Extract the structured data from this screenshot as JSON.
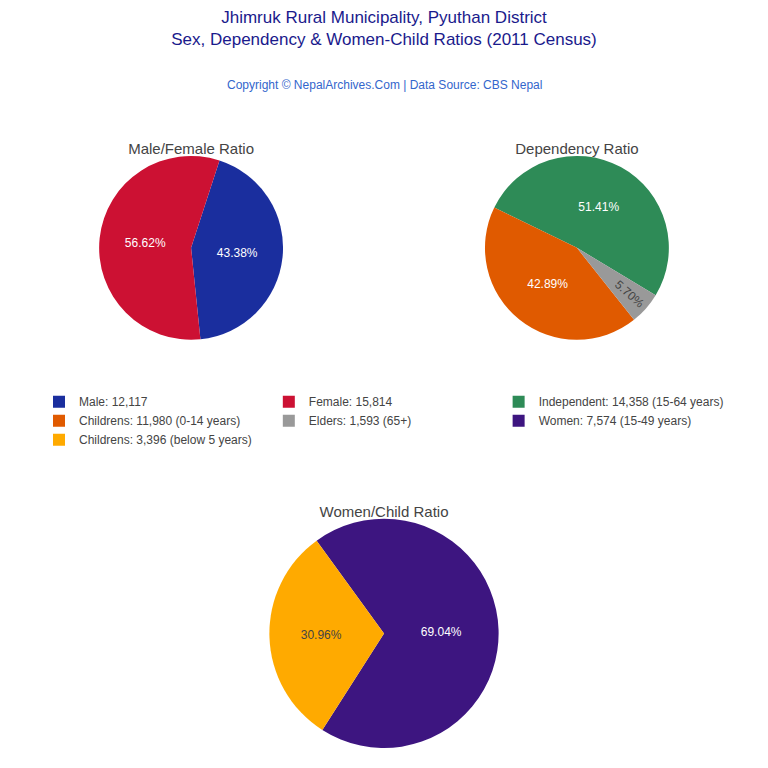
{
  "title": "Jhimruk Rural Municipality, Pyuthan District",
  "subtitle": "Sex, Dependency & Women-Child Ratios (2011 Census)",
  "annotations": [
    "Copyright © NepalArchives.Com | Data Source: CBS Nepal"
  ],
  "chart_data": [
    {
      "type": "pie",
      "title": "Male/Female Ratio",
      "categories": [
        "Male: 12,117",
        "Female: 15,814"
      ],
      "values": [
        43.38,
        56.62
      ],
      "value_labels": [
        "43.38%",
        "56.62%"
      ],
      "colors": [
        "#1a2e9e",
        "#cc1133"
      ],
      "data_labels": true,
      "legend": "center"
    },
    {
      "type": "pie",
      "title": "Dependency Ratio",
      "categories": [
        "Independent: 14,358 (15-64 years)",
        "Childrens: 11,980 (0-14 years)",
        "Elders: 1,593 (65+)"
      ],
      "values": [
        51.41,
        42.89,
        5.7
      ],
      "value_labels": [
        "51.41%",
        "42.89%",
        "5.70%"
      ],
      "colors": [
        "#2e8b57",
        "#e05a00",
        "#999999"
      ],
      "data_labels": true,
      "legend": "center"
    },
    {
      "type": "pie",
      "title": "Women/Child Ratio",
      "categories": [
        "Women: 7,574 (15-49 years)",
        "Childrens: 3,396 (below 5 years)"
      ],
      "values": [
        69.04,
        30.96
      ],
      "value_labels": [
        "69.04%",
        "30.96%"
      ],
      "colors": [
        "#3d1580",
        "#ffaa00"
      ],
      "data_labels": true,
      "legend": "center"
    }
  ]
}
